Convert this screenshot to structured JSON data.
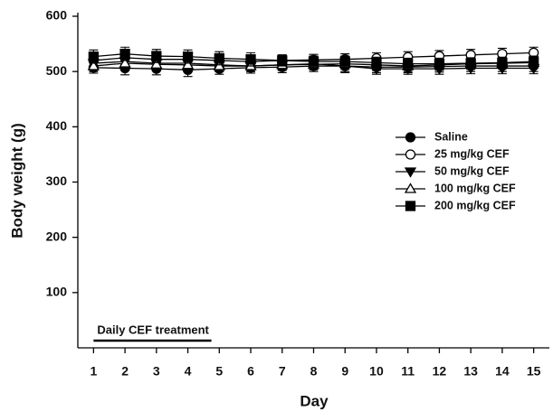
{
  "chart_data": {
    "type": "line",
    "xlabel": "Day",
    "ylabel": "Body weight (g)",
    "annotation": "Daily CEF treatment",
    "x": [
      1,
      2,
      3,
      4,
      5,
      6,
      7,
      8,
      9,
      10,
      11,
      12,
      13,
      14,
      15
    ],
    "series": [
      {
        "name": "Saline",
        "color": "#000000",
        "marker": "circle",
        "marker_fill": "#000000",
        "values": [
          507,
          506,
          505,
          503,
          505,
          507,
          508,
          510,
          510,
          508,
          508,
          509,
          510,
          510,
          510
        ],
        "errors": [
          10,
          12,
          11,
          12,
          10,
          10,
          10,
          10,
          10,
          10,
          10,
          10,
          10,
          10,
          10
        ]
      },
      {
        "name": "25 mg/kg CEF",
        "color": "#000000",
        "marker": "circle",
        "marker_fill": "#ffffff",
        "values": [
          520,
          525,
          522,
          522,
          520,
          518,
          520,
          521,
          522,
          524,
          526,
          528,
          530,
          532,
          534
        ],
        "errors": [
          12,
          12,
          12,
          12,
          12,
          12,
          10,
          10,
          10,
          10,
          10,
          10,
          10,
          10,
          10
        ]
      },
      {
        "name": "50 mg/kg CEF",
        "color": "#000000",
        "marker": "triangle-down",
        "marker_fill": "#000000",
        "values": [
          515,
          518,
          515,
          515,
          512,
          510,
          512,
          514,
          510,
          505,
          505,
          505,
          506,
          506,
          506
        ],
        "errors": [
          12,
          12,
          12,
          12,
          12,
          10,
          10,
          10,
          12,
          10,
          10,
          10,
          10,
          10,
          10
        ]
      },
      {
        "name": "100 mg/kg CEF",
        "color": "#000000",
        "marker": "triangle-up",
        "marker_fill": "#ffffff",
        "values": [
          510,
          515,
          513,
          512,
          510,
          510,
          512,
          513,
          514,
          512,
          510,
          512,
          514,
          515,
          516
        ],
        "errors": [
          10,
          10,
          10,
          10,
          10,
          10,
          10,
          10,
          10,
          10,
          10,
          10,
          10,
          10,
          10
        ]
      },
      {
        "name": "200 mg/kg CEF",
        "color": "#000000",
        "marker": "square",
        "marker_fill": "#000000",
        "values": [
          527,
          532,
          528,
          527,
          524,
          522,
          520,
          518,
          518,
          516,
          514,
          514,
          515,
          516,
          518
        ],
        "errors": [
          12,
          12,
          12,
          12,
          12,
          12,
          10,
          10,
          10,
          10,
          10,
          10,
          10,
          10,
          10
        ]
      }
    ],
    "xlim": [
      0.5,
      15.5
    ],
    "xticks": [
      1,
      2,
      3,
      4,
      5,
      6,
      7,
      8,
      9,
      10,
      11,
      12,
      13,
      14,
      15
    ],
    "ylim": [
      0,
      600
    ],
    "yticks": [
      100,
      200,
      300,
      400,
      500,
      600
    ],
    "grid": false,
    "legend": "right"
  }
}
